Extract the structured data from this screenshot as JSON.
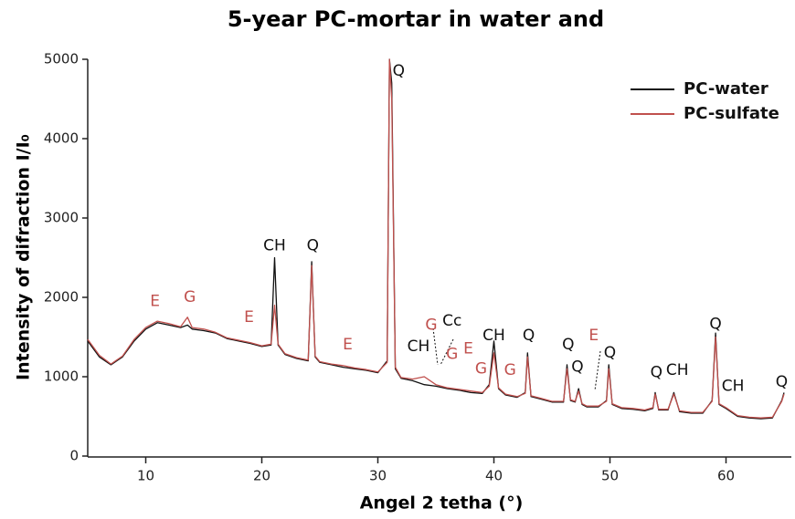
{
  "chart_data": {
    "type": "line",
    "title": "5-year PC-mortar in water and",
    "xlabel": "Angel 2 tetha (°)",
    "ylabel": "Intensity of difraction I/I₀",
    "xlim": [
      5,
      65
    ],
    "ylim": [
      0,
      5000
    ],
    "xticks": [
      10,
      20,
      30,
      40,
      50,
      60
    ],
    "yticks": [
      0,
      1000,
      2000,
      3000,
      4000,
      5000
    ],
    "legend": "upper right",
    "x": [
      5,
      6,
      7,
      8,
      9,
      10,
      11,
      12,
      13,
      13.6,
      14,
      15,
      16,
      17,
      18,
      19,
      20,
      20.8,
      21.1,
      21.4,
      22,
      23,
      24,
      24.3,
      24.6,
      25,
      26,
      27,
      28,
      29,
      30,
      30.8,
      31.0,
      31.2,
      31.5,
      32,
      33,
      34,
      35,
      36,
      37,
      38,
      39,
      39.6,
      40,
      40.4,
      41,
      42,
      42.7,
      42.9,
      43.2,
      44,
      45,
      46,
      46.3,
      46.6,
      47,
      47.3,
      47.6,
      48,
      49,
      49.7,
      49.9,
      50.2,
      51,
      52,
      53,
      53.7,
      53.9,
      54.2,
      55,
      55.5,
      56,
      57,
      58,
      58.8,
      59.1,
      59.4,
      60,
      61,
      62,
      63,
      64,
      64.8,
      65
    ],
    "series": [
      {
        "name": "PC-water",
        "color": "#111111",
        "values": [
          1450,
          1250,
          1150,
          1250,
          1450,
          1600,
          1680,
          1650,
          1620,
          1650,
          1600,
          1580,
          1550,
          1480,
          1450,
          1420,
          1380,
          1400,
          2500,
          1400,
          1280,
          1230,
          1200,
          2450,
          1250,
          1180,
          1150,
          1120,
          1100,
          1080,
          1050,
          1200,
          5000,
          4700,
          1100,
          980,
          950,
          900,
          880,
          850,
          830,
          800,
          790,
          900,
          1450,
          850,
          770,
          740,
          800,
          1300,
          750,
          720,
          680,
          680,
          1150,
          700,
          680,
          850,
          650,
          620,
          620,
          700,
          1150,
          650,
          600,
          590,
          570,
          600,
          800,
          580,
          580,
          800,
          560,
          540,
          540,
          700,
          1550,
          650,
          600,
          500,
          480,
          470,
          480,
          700,
          800
        ]
      },
      {
        "name": "PC-sulfate",
        "color": "#c0504d",
        "values": [
          1470,
          1270,
          1160,
          1260,
          1470,
          1620,
          1700,
          1670,
          1630,
          1750,
          1620,
          1600,
          1560,
          1490,
          1460,
          1430,
          1390,
          1410,
          1900,
          1410,
          1290,
          1240,
          1210,
          2400,
          1260,
          1190,
          1160,
          1140,
          1110,
          1090,
          1060,
          1180,
          5000,
          4500,
          1120,
          990,
          970,
          1000,
          900,
          860,
          840,
          820,
          800,
          880,
          1300,
          860,
          780,
          750,
          790,
          1250,
          760,
          730,
          690,
          690,
          1100,
          710,
          690,
          820,
          660,
          630,
          630,
          690,
          1100,
          660,
          610,
          600,
          580,
          610,
          780,
          590,
          590,
          780,
          570,
          550,
          550,
          690,
          1500,
          660,
          610,
          510,
          490,
          480,
          490,
          690,
          780
        ]
      }
    ],
    "annotations": [
      {
        "text": "Q",
        "x": 31.8,
        "y": 4850,
        "color": "#111111"
      },
      {
        "text": "CH",
        "x": 21.1,
        "y": 2650,
        "color": "#111111"
      },
      {
        "text": "Q",
        "x": 24.4,
        "y": 2650,
        "color": "#111111"
      },
      {
        "text": "E",
        "x": 10.8,
        "y": 1950,
        "color": "#c0504d"
      },
      {
        "text": "G",
        "x": 13.8,
        "y": 2000,
        "color": "#c0504d"
      },
      {
        "text": "E",
        "x": 18.9,
        "y": 1750,
        "color": "#c0504d"
      },
      {
        "text": "E",
        "x": 27.4,
        "y": 1400,
        "color": "#c0504d"
      },
      {
        "text": "CH",
        "x": 33.5,
        "y": 1380,
        "color": "#111111"
      },
      {
        "text": "G",
        "x": 34.6,
        "y": 1650,
        "color": "#c0504d"
      },
      {
        "text": "Cc",
        "x": 36.4,
        "y": 1700,
        "color": "#111111"
      },
      {
        "text": "G",
        "x": 36.4,
        "y": 1280,
        "color": "#c0504d"
      },
      {
        "text": "E",
        "x": 37.8,
        "y": 1350,
        "color": "#c0504d"
      },
      {
        "text": "G",
        "x": 38.9,
        "y": 1100,
        "color": "#c0504d"
      },
      {
        "text": "CH",
        "x": 40.0,
        "y": 1520,
        "color": "#111111"
      },
      {
        "text": "G",
        "x": 41.4,
        "y": 1080,
        "color": "#c0504d"
      },
      {
        "text": "Q",
        "x": 43.0,
        "y": 1520,
        "color": "#111111"
      },
      {
        "text": "Q",
        "x": 46.4,
        "y": 1400,
        "color": "#111111"
      },
      {
        "text": "Q",
        "x": 47.2,
        "y": 1120,
        "color": "#111111"
      },
      {
        "text": "E",
        "x": 48.6,
        "y": 1520,
        "color": "#c0504d"
      },
      {
        "text": "Q",
        "x": 50.0,
        "y": 1300,
        "color": "#111111"
      },
      {
        "text": "Q",
        "x": 54.0,
        "y": 1050,
        "color": "#111111"
      },
      {
        "text": "CH",
        "x": 55.8,
        "y": 1080,
        "color": "#111111"
      },
      {
        "text": "Q",
        "x": 59.1,
        "y": 1660,
        "color": "#111111"
      },
      {
        "text": "CH",
        "x": 60.6,
        "y": 880,
        "color": "#111111"
      },
      {
        "text": "Q",
        "x": 64.8,
        "y": 930,
        "color": "#111111"
      }
    ]
  }
}
